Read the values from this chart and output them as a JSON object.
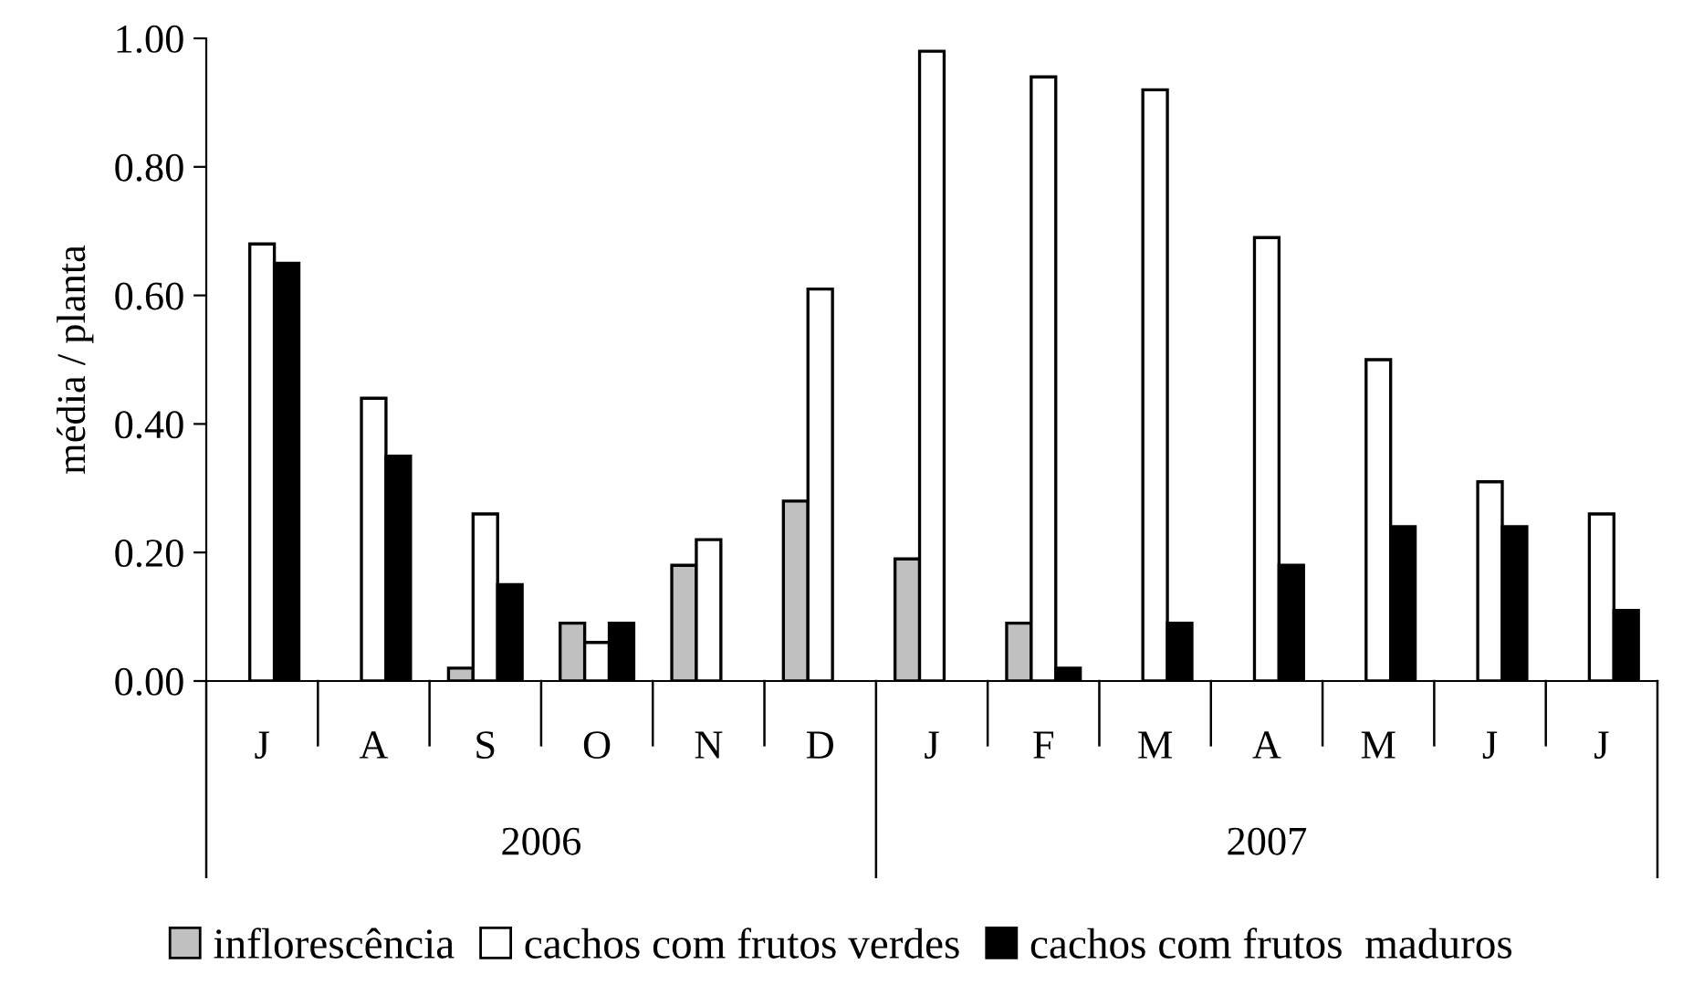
{
  "chart_data": {
    "type": "bar",
    "ylabel": "média / planta",
    "categories": [
      "J",
      "A",
      "S",
      "O",
      "N",
      "D",
      "J",
      "F",
      "M",
      "A",
      "M",
      "J",
      "J"
    ],
    "annotations": [
      "2006",
      "2007"
    ],
    "series": [
      {
        "name": "inflorescência",
        "color": "#c0c0c0",
        "values": [
          null,
          null,
          0.02,
          0.09,
          0.18,
          0.28,
          0.19,
          0.09,
          null,
          null,
          null,
          null,
          null
        ]
      },
      {
        "name": "cachos com frutos verdes",
        "color": "#ffffff",
        "values": [
          0.68,
          0.44,
          0.26,
          0.06,
          0.22,
          0.61,
          0.98,
          0.94,
          0.92,
          0.69,
          0.5,
          0.31,
          0.26
        ]
      },
      {
        "name": "cachos com frutos  maduros",
        "color": "#000000",
        "values": [
          0.65,
          0.35,
          0.15,
          0.09,
          null,
          null,
          null,
          0.02,
          0.09,
          0.18,
          0.24,
          0.24,
          0.11
        ]
      }
    ],
    "ylim": [
      0,
      1.0
    ],
    "yticks": [
      {
        "value": 0,
        "label": "0.00"
      },
      {
        "value": 0.2,
        "label": "0.20"
      },
      {
        "value": 0.4,
        "label": "0.40"
      },
      {
        "value": 0.6,
        "label": "0.60"
      },
      {
        "value": 0.8,
        "label": "0.80"
      },
      {
        "value": 1.0,
        "label": "1.00"
      }
    ],
    "grid": false,
    "legend": "bottom"
  }
}
